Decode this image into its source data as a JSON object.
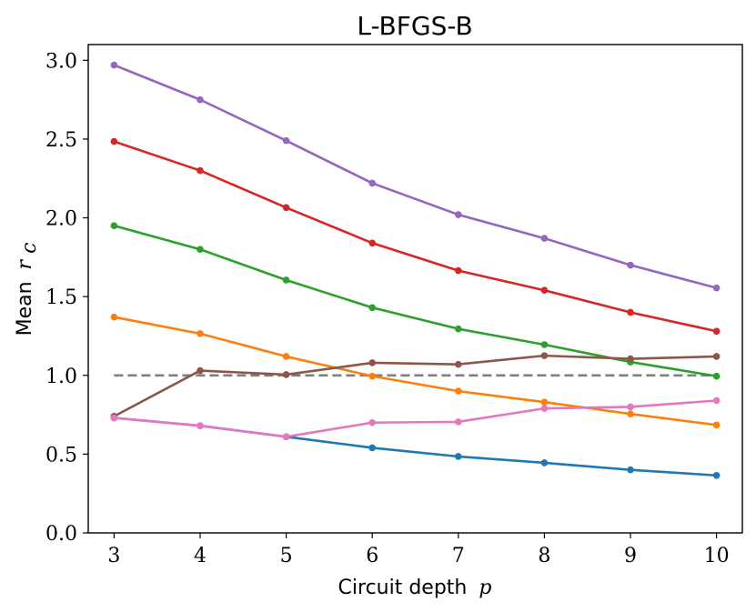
{
  "chart_data": {
    "type": "line",
    "title": "L-BFGS-B",
    "xlabel": "Circuit depth",
    "xlabel_var": "p",
    "ylabel": "Mean",
    "ylabel_var": "r",
    "ylabel_sub": "c",
    "x": [
      3,
      4,
      5,
      6,
      7,
      8,
      9,
      10
    ],
    "xlim": [
      2.7,
      10.3
    ],
    "ylim": [
      0.0,
      3.1
    ],
    "xticks": [
      "3",
      "4",
      "5",
      "6",
      "7",
      "8",
      "9",
      "10"
    ],
    "yticks": [
      "0.0",
      "0.5",
      "1.0",
      "1.5",
      "2.0",
      "2.5",
      "3.0"
    ],
    "grid": false,
    "reference_line": {
      "y": 1.0,
      "style": "dashed",
      "color": "#7f7f7f"
    },
    "series": [
      {
        "name": "series-blue",
        "color": "#1f77b4",
        "values": [
          0.73,
          0.68,
          0.61,
          0.54,
          0.485,
          0.445,
          0.4,
          0.365
        ]
      },
      {
        "name": "series-orange",
        "color": "#ff7f0e",
        "values": [
          1.37,
          1.265,
          1.12,
          0.995,
          0.9,
          0.83,
          0.755,
          0.685
        ]
      },
      {
        "name": "series-green",
        "color": "#2ca02c",
        "values": [
          1.95,
          1.8,
          1.605,
          1.43,
          1.295,
          1.195,
          1.085,
          0.995
        ]
      },
      {
        "name": "series-red",
        "color": "#d62728",
        "values": [
          2.485,
          2.3,
          2.065,
          1.84,
          1.665,
          1.54,
          1.4,
          1.28
        ]
      },
      {
        "name": "series-purple",
        "color": "#9467bd",
        "values": [
          2.97,
          2.75,
          2.49,
          2.22,
          2.02,
          1.87,
          1.7,
          1.555
        ]
      },
      {
        "name": "series-brown",
        "color": "#8c564b",
        "values": [
          0.74,
          1.03,
          1.005,
          1.08,
          1.07,
          1.125,
          1.105,
          1.12
        ]
      },
      {
        "name": "series-pink",
        "color": "#e377c2",
        "values": [
          0.73,
          0.68,
          0.61,
          0.7,
          0.705,
          0.79,
          0.8,
          0.84
        ]
      }
    ]
  }
}
